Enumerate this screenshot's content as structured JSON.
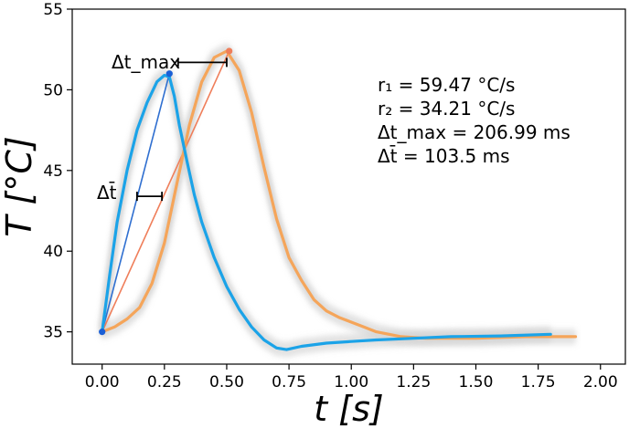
{
  "chart_data": {
    "type": "line",
    "xlabel": "t [s]",
    "ylabel": "T [°C]",
    "xlim": [
      -0.12,
      2.1
    ],
    "ylim": [
      33,
      55
    ],
    "xticks": [
      0.0,
      0.25,
      0.5,
      0.75,
      1.0,
      1.25,
      1.5,
      1.75,
      2.0
    ],
    "xtick_labels": [
      "0.00",
      "0.25",
      "0.50",
      "0.75",
      "1.00",
      "1.25",
      "1.50",
      "1.75",
      "2.00"
    ],
    "yticks": [
      35,
      40,
      45,
      50,
      55
    ],
    "ytick_labels": [
      "35",
      "40",
      "45",
      "50",
      "55"
    ],
    "colors": {
      "blue": "#1ba3e8",
      "orange": "#f5a55a",
      "blue_point": "#1a5fd6",
      "orange_point": "#ef7e5a",
      "blue_slope": "#2f6fd0",
      "orange_slope": "#ef7e5a",
      "band": "#cfcfcf"
    },
    "series": [
      {
        "name": "blue",
        "x": [
          0.0,
          0.03,
          0.06,
          0.1,
          0.14,
          0.18,
          0.22,
          0.25,
          0.27,
          0.29,
          0.31,
          0.34,
          0.37,
          0.4,
          0.45,
          0.5,
          0.55,
          0.6,
          0.65,
          0.7,
          0.74,
          0.8,
          0.9,
          1.0,
          1.1,
          1.25,
          1.4,
          1.6,
          1.8
        ],
        "y": [
          35.0,
          38.5,
          41.8,
          45.0,
          47.5,
          49.2,
          50.5,
          50.9,
          50.8,
          49.6,
          47.8,
          45.6,
          43.5,
          41.8,
          39.6,
          37.8,
          36.4,
          35.3,
          34.5,
          34.0,
          33.9,
          34.1,
          34.3,
          34.4,
          34.5,
          34.6,
          34.7,
          34.75,
          34.85
        ]
      },
      {
        "name": "orange",
        "x": [
          0.0,
          0.05,
          0.1,
          0.15,
          0.2,
          0.25,
          0.3,
          0.35,
          0.4,
          0.45,
          0.5,
          0.55,
          0.6,
          0.65,
          0.7,
          0.75,
          0.8,
          0.85,
          0.9,
          0.95,
          1.0,
          1.05,
          1.1,
          1.2,
          1.3,
          1.5,
          1.7,
          1.9
        ],
        "y": [
          35.0,
          35.3,
          35.8,
          36.5,
          38.0,
          40.5,
          44.2,
          47.8,
          50.5,
          52.0,
          52.4,
          51.2,
          48.6,
          45.2,
          42.0,
          39.6,
          38.2,
          37.0,
          36.3,
          35.9,
          35.6,
          35.3,
          35.0,
          34.7,
          34.6,
          34.6,
          34.7,
          34.7
        ]
      }
    ],
    "points": [
      {
        "name": "blue-start",
        "x": 0.0,
        "y": 35.0,
        "color": "blue_point"
      },
      {
        "name": "blue-peak",
        "x": 0.27,
        "y": 51.0,
        "color": "blue_point"
      },
      {
        "name": "orange-peak",
        "x": 0.51,
        "y": 52.4,
        "color": "orange_point"
      }
    ],
    "slope_lines": [
      {
        "name": "blue-slope-line",
        "x": [
          0.0,
          0.27
        ],
        "y": [
          35.0,
          51.0
        ],
        "color": "blue_slope"
      },
      {
        "name": "orange-slope-line",
        "x": [
          0.0,
          0.51
        ],
        "y": [
          35.0,
          52.4
        ],
        "color": "orange_slope"
      }
    ],
    "intervals": [
      {
        "name": "dt-max-bracket",
        "x1": 0.305,
        "x2": 0.5,
        "y": 51.7
      },
      {
        "name": "dt-bar-bracket",
        "x1": 0.14,
        "x2": 0.24,
        "y": 43.4
      }
    ],
    "annotations": {
      "dt_max_label": "Δt_max",
      "dt_bar_label": "Δt̄",
      "r1": "r₁ = 59.47 °C/s",
      "r2": "r₂ = 34.21 °C/s",
      "dt_max_value": "Δt_max = 206.99 ms",
      "dt_bar_value": "Δt̄ = 103.5 ms"
    }
  }
}
